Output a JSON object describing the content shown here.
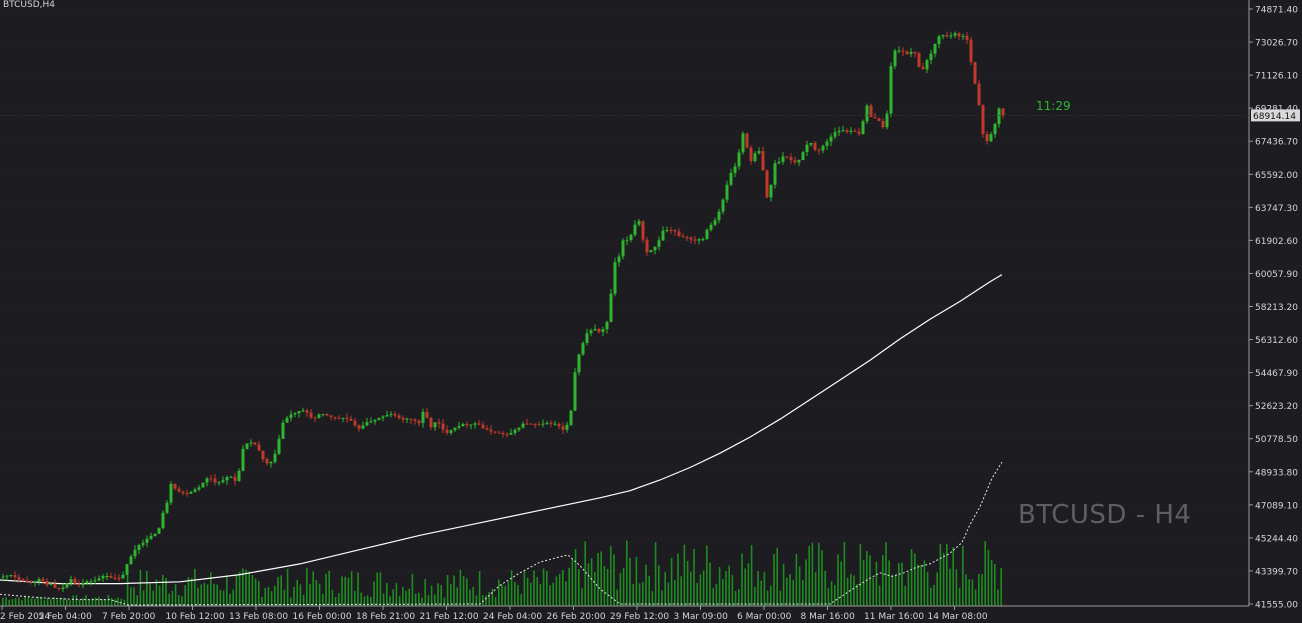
{
  "symbol_label": "BTCUSD,H4",
  "watermark": "BTCUSD - H4",
  "timer": "11:29",
  "current_price": "68914.14",
  "colors": {
    "background": "#1c1c21",
    "grid": "#2a2a30",
    "bull": "#2fb52f",
    "bear": "#c0392b",
    "volume": "#1f8c1f",
    "ma_line": "#ffffff",
    "axis_text": "#d6d6d6",
    "price_tag_bg": "#d9d9d9"
  },
  "chart_data": {
    "type": "candlestick",
    "title": "BTCUSD,H4",
    "y_ticks": [
      "74871.40",
      "73026.70",
      "71126.10",
      "69281.40",
      "67436.70",
      "65592.00",
      "63747.30",
      "61902.60",
      "60057.90",
      "58213.20",
      "56312.60",
      "54467.90",
      "52623.20",
      "50778.50",
      "48933.80",
      "47089.10",
      "45244.40",
      "43399.70",
      "41555.00"
    ],
    "ylim": [
      41555.0,
      74871.4
    ],
    "x_ticks": [
      "2 Feb 2024",
      "5 Feb 04:00",
      "7 Feb 20:00",
      "10 Feb 12:00",
      "13 Feb 08:00",
      "16 Feb 00:00",
      "18 Feb 21:00",
      "21 Feb 12:00",
      "24 Feb 04:00",
      "26 Feb 20:00",
      "29 Feb 12:00",
      "3 Mar 09:00",
      "6 Mar 00:00",
      "8 Mar 16:00",
      "11 Mar 16:00",
      "14 Mar 08:00"
    ],
    "close_path": [
      [
        0,
        43050
      ],
      [
        10,
        43200
      ],
      [
        20,
        42900
      ],
      [
        30,
        42800
      ],
      [
        40,
        42950
      ],
      [
        45,
        42600
      ],
      [
        50,
        42700
      ],
      [
        56,
        42300
      ],
      [
        64,
        42550
      ],
      [
        70,
        43000
      ],
      [
        76,
        42600
      ],
      [
        86,
        42800
      ],
      [
        96,
        42900
      ],
      [
        104,
        43200
      ],
      [
        112,
        43000
      ],
      [
        120,
        42950
      ],
      [
        128,
        44000
      ],
      [
        136,
        44800
      ],
      [
        144,
        45100
      ],
      [
        152,
        45400
      ],
      [
        158,
        45800
      ],
      [
        162,
        46600
      ],
      [
        166,
        47300
      ],
      [
        170,
        48400
      ],
      [
        176,
        47900
      ],
      [
        184,
        47700
      ],
      [
        192,
        47900
      ],
      [
        200,
        48200
      ],
      [
        208,
        48700
      ],
      [
        216,
        48300
      ],
      [
        224,
        48600
      ],
      [
        232,
        48700
      ],
      [
        236,
        48200
      ],
      [
        240,
        50000
      ],
      [
        246,
        50500
      ],
      [
        252,
        50600
      ],
      [
        256,
        50400
      ],
      [
        262,
        49600
      ],
      [
        268,
        49300
      ],
      [
        274,
        49900
      ],
      [
        278,
        50900
      ],
      [
        282,
        51700
      ],
      [
        288,
        52100
      ],
      [
        296,
        52300
      ],
      [
        304,
        52400
      ],
      [
        312,
        51900
      ],
      [
        320,
        52200
      ],
      [
        328,
        52100
      ],
      [
        336,
        51900
      ],
      [
        344,
        52000
      ],
      [
        352,
        51700
      ],
      [
        356,
        51300
      ],
      [
        362,
        51600
      ],
      [
        370,
        51800
      ],
      [
        380,
        52000
      ],
      [
        390,
        52200
      ],
      [
        400,
        51900
      ],
      [
        410,
        51900
      ],
      [
        418,
        51700
      ],
      [
        424,
        52500
      ],
      [
        428,
        51400
      ],
      [
        436,
        51800
      ],
      [
        444,
        51100
      ],
      [
        452,
        51400
      ],
      [
        460,
        51600
      ],
      [
        468,
        51600
      ],
      [
        476,
        51700
      ],
      [
        484,
        51300
      ],
      [
        492,
        51200
      ],
      [
        500,
        51100
      ],
      [
        508,
        51000
      ],
      [
        516,
        51400
      ],
      [
        524,
        51700
      ],
      [
        532,
        51600
      ],
      [
        540,
        51600
      ],
      [
        548,
        51700
      ],
      [
        556,
        51600
      ],
      [
        564,
        51200
      ],
      [
        570,
        52300
      ],
      [
        574,
        54400
      ],
      [
        580,
        56000
      ],
      [
        586,
        56700
      ],
      [
        592,
        57000
      ],
      [
        598,
        56800
      ],
      [
        604,
        57000
      ],
      [
        608,
        57600
      ],
      [
        612,
        60300
      ],
      [
        618,
        61000
      ],
      [
        622,
        61800
      ],
      [
        628,
        62000
      ],
      [
        632,
        62500
      ],
      [
        636,
        63200
      ],
      [
        640,
        62800
      ],
      [
        644,
        61200
      ],
      [
        650,
        61400
      ],
      [
        656,
        61600
      ],
      [
        662,
        62400
      ],
      [
        668,
        62500
      ],
      [
        674,
        62400
      ],
      [
        680,
        62100
      ],
      [
        686,
        62100
      ],
      [
        692,
        61900
      ],
      [
        698,
        62000
      ],
      [
        702,
        62000
      ],
      [
        706,
        62600
      ],
      [
        712,
        62900
      ],
      [
        716,
        63300
      ],
      [
        720,
        63800
      ],
      [
        724,
        64500
      ],
      [
        728,
        65500
      ],
      [
        732,
        65900
      ],
      [
        736,
        66200
      ],
      [
        740,
        67500
      ],
      [
        744,
        68300
      ],
      [
        748,
        66100
      ],
      [
        752,
        66500
      ],
      [
        756,
        67000
      ],
      [
        760,
        66800
      ],
      [
        764,
        64700
      ],
      [
        768,
        63900
      ],
      [
        772,
        66200
      ],
      [
        776,
        66100
      ],
      [
        780,
        66600
      ],
      [
        786,
        66600
      ],
      [
        790,
        66400
      ],
      [
        796,
        66200
      ],
      [
        800,
        66600
      ],
      [
        804,
        67200
      ],
      [
        810,
        67400
      ],
      [
        816,
        66800
      ],
      [
        822,
        67200
      ],
      [
        828,
        67600
      ],
      [
        834,
        68000
      ],
      [
        840,
        68100
      ],
      [
        846,
        68000
      ],
      [
        852,
        68100
      ],
      [
        858,
        67900
      ],
      [
        862,
        68500
      ],
      [
        866,
        69400
      ],
      [
        870,
        68900
      ],
      [
        876,
        68700
      ],
      [
        882,
        68300
      ],
      [
        886,
        69000
      ],
      [
        890,
        71600
      ],
      [
        894,
        72500
      ],
      [
        900,
        72600
      ],
      [
        906,
        72300
      ],
      [
        912,
        72600
      ],
      [
        916,
        72200
      ],
      [
        920,
        71200
      ],
      [
        924,
        71700
      ],
      [
        928,
        72200
      ],
      [
        932,
        72500
      ],
      [
        936,
        73300
      ],
      [
        940,
        73500
      ],
      [
        944,
        73300
      ],
      [
        950,
        73400
      ],
      [
        956,
        73600
      ],
      [
        960,
        73000
      ],
      [
        964,
        73700
      ],
      [
        968,
        72700
      ],
      [
        972,
        71300
      ],
      [
        976,
        70000
      ],
      [
        980,
        68700
      ],
      [
        984,
        67200
      ],
      [
        988,
        67800
      ],
      [
        992,
        68000
      ],
      [
        998,
        69200
      ],
      [
        1002,
        68914
      ]
    ],
    "ma_path": [
      [
        0,
        42900
      ],
      [
        60,
        42700
      ],
      [
        120,
        42700
      ],
      [
        180,
        42800
      ],
      [
        240,
        43200
      ],
      [
        300,
        43800
      ],
      [
        360,
        44600
      ],
      [
        420,
        45400
      ],
      [
        480,
        46100
      ],
      [
        540,
        46800
      ],
      [
        600,
        47500
      ],
      [
        630,
        47900
      ],
      [
        660,
        48500
      ],
      [
        690,
        49200
      ],
      [
        720,
        50000
      ],
      [
        750,
        50900
      ],
      [
        780,
        51900
      ],
      [
        810,
        53000
      ],
      [
        840,
        54100
      ],
      [
        870,
        55200
      ],
      [
        900,
        56400
      ],
      [
        930,
        57500
      ],
      [
        960,
        58500
      ],
      [
        990,
        59600
      ],
      [
        1002,
        60000
      ]
    ],
    "indicator_path": [
      [
        0,
        42100
      ],
      [
        40,
        41900
      ],
      [
        80,
        41800
      ],
      [
        110,
        41800
      ],
      [
        128,
        41500
      ],
      [
        480,
        41555
      ],
      [
        500,
        42600
      ],
      [
        520,
        43300
      ],
      [
        540,
        43900
      ],
      [
        560,
        44200
      ],
      [
        568,
        44300
      ],
      [
        580,
        43700
      ],
      [
        600,
        42400
      ],
      [
        620,
        41555
      ],
      [
        830,
        41555
      ],
      [
        850,
        42300
      ],
      [
        870,
        43000
      ],
      [
        880,
        43300
      ],
      [
        892,
        43100
      ],
      [
        904,
        43300
      ],
      [
        916,
        43600
      ],
      [
        930,
        43800
      ],
      [
        950,
        44400
      ],
      [
        962,
        45000
      ],
      [
        970,
        46000
      ],
      [
        980,
        47000
      ],
      [
        992,
        48600
      ],
      [
        1002,
        49500
      ]
    ]
  }
}
